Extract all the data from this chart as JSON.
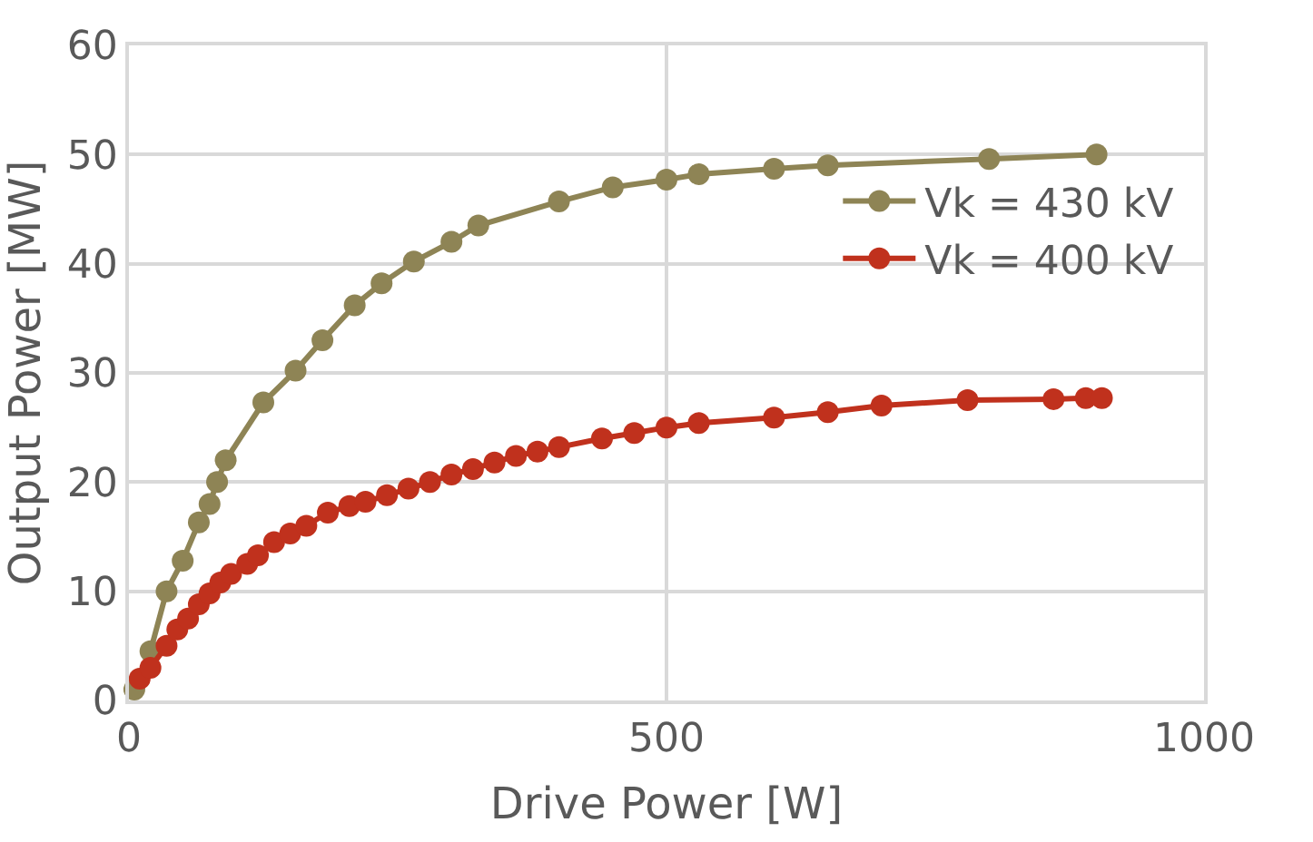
{
  "chart_data": {
    "type": "line",
    "xlabel": "Drive Power [W]",
    "ylabel": "Output Power [MW]",
    "xlim": [
      0,
      1000
    ],
    "xticks": [
      0,
      500,
      1000
    ],
    "ylim": [
      0,
      60
    ],
    "yticks": [
      0,
      10,
      20,
      30,
      40,
      50,
      60
    ],
    "grid": true,
    "legend": "right",
    "marker": "circle",
    "line_style": "solid",
    "series": [
      {
        "name": "Vk = 430 kV",
        "color": "#8e8455",
        "x": [
          5,
          20,
          35,
          50,
          65,
          75,
          82,
          90,
          125,
          155,
          180,
          210,
          235,
          265,
          300,
          325,
          400,
          450,
          500,
          530,
          600,
          650,
          800,
          900
        ],
        "values": [
          1,
          4.5,
          10,
          12.8,
          16.3,
          18,
          20,
          22,
          27.3,
          30.2,
          33,
          36.2,
          38.2,
          40.2,
          42,
          43.5,
          45.7,
          47,
          47.7,
          48.2,
          48.7,
          49,
          49.6,
          50
        ]
      },
      {
        "name": "Vk = 400 kV",
        "color": "#c0311d",
        "x": [
          10,
          20,
          35,
          45,
          55,
          65,
          75,
          85,
          95,
          110,
          120,
          135,
          150,
          165,
          185,
          205,
          220,
          240,
          260,
          280,
          300,
          320,
          340,
          360,
          380,
          400,
          440,
          470,
          500,
          530,
          600,
          650,
          700,
          780,
          860,
          890,
          905
        ],
        "values": [
          2,
          3,
          5,
          6.5,
          7.5,
          8.8,
          9.8,
          10.8,
          11.6,
          12.5,
          13.3,
          14.5,
          15.3,
          16,
          17.2,
          17.8,
          18.2,
          18.8,
          19.4,
          20,
          20.7,
          21.2,
          21.8,
          22.4,
          22.8,
          23.2,
          24,
          24.5,
          25,
          25.4,
          25.9,
          26.4,
          27,
          27.5,
          27.6,
          27.7,
          27.7
        ]
      }
    ]
  }
}
